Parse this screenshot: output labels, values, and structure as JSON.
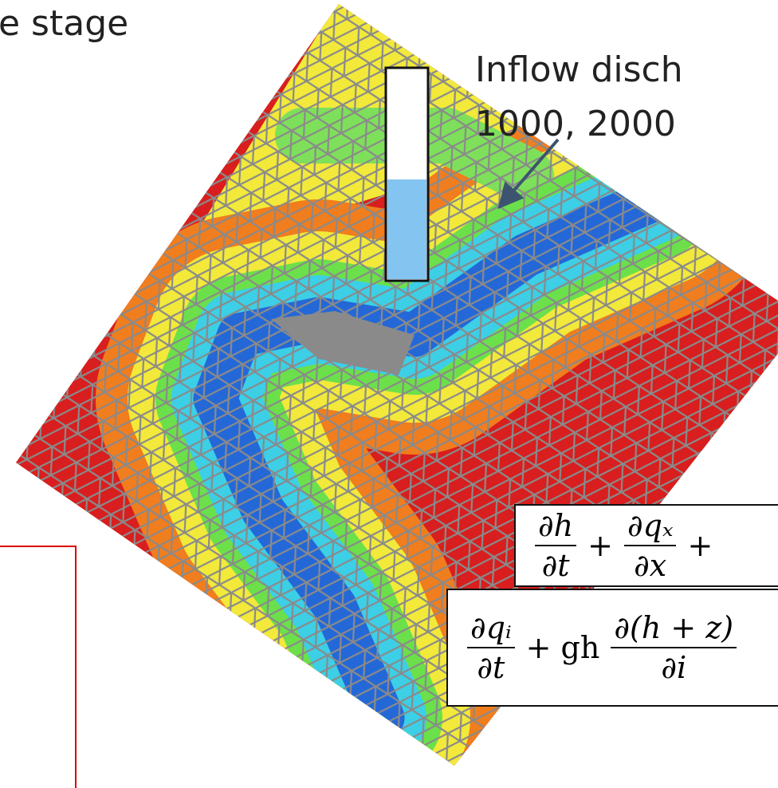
{
  "labels": {
    "stage": "e stage",
    "inflow_line1": "Inflow disch",
    "inflow_line2": "1000, 2000"
  },
  "equations": [
    {
      "terms": [
        {
          "num": "∂h",
          "den": "∂t"
        },
        {
          "op": "+"
        },
        {
          "num": "∂qₓ",
          "den": "∂x"
        },
        {
          "op": "+"
        }
      ]
    },
    {
      "terms": [
        {
          "num": "∂qᵢ",
          "den": "∂t"
        },
        {
          "op": "+ gh"
        },
        {
          "num": "∂(h + z)",
          "den": "∂i"
        }
      ]
    }
  ]
}
